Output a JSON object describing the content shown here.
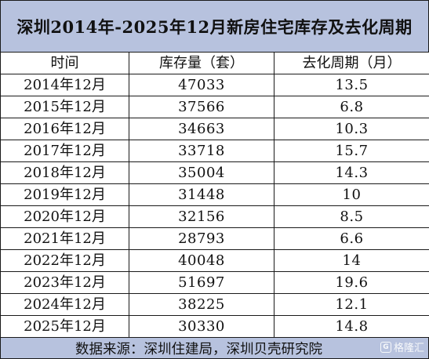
{
  "title": "深圳2014年-2025年12月新房住宅库存及去化周期",
  "table": {
    "headers": [
      "时间",
      "库存量（套）",
      "去化周期（月）"
    ],
    "rows": [
      {
        "time": "2014年12月",
        "inventory": "47033",
        "cycle": "13.5"
      },
      {
        "time": "2015年12月",
        "inventory": "37566",
        "cycle": "6.8"
      },
      {
        "time": "2016年12月",
        "inventory": "34663",
        "cycle": "10.3"
      },
      {
        "time": "2017年12月",
        "inventory": "33718",
        "cycle": "15.7"
      },
      {
        "time": "2018年12月",
        "inventory": "35004",
        "cycle": "14.3"
      },
      {
        "time": "2019年12月",
        "inventory": "31448",
        "cycle": "10"
      },
      {
        "time": "2020年12月",
        "inventory": "32156",
        "cycle": "8.5"
      },
      {
        "time": "2021年12月",
        "inventory": "28793",
        "cycle": "6.6"
      },
      {
        "time": "2022年12月",
        "inventory": "40048",
        "cycle": "14"
      },
      {
        "time": "2023年12月",
        "inventory": "51697",
        "cycle": "19.6"
      },
      {
        "time": "2024年12月",
        "inventory": "38225",
        "cycle": "12.1"
      },
      {
        "time": "2025年12月",
        "inventory": "30330",
        "cycle": "14.8"
      }
    ]
  },
  "footer": {
    "source": "数据来源：深圳住建局，深圳贝壳研究院"
  },
  "watermark": {
    "text": "格隆汇",
    "icon": "gelonghui-logo-icon"
  },
  "colors": {
    "header_band": "#b7c2de",
    "border": "#1a1a1a"
  }
}
